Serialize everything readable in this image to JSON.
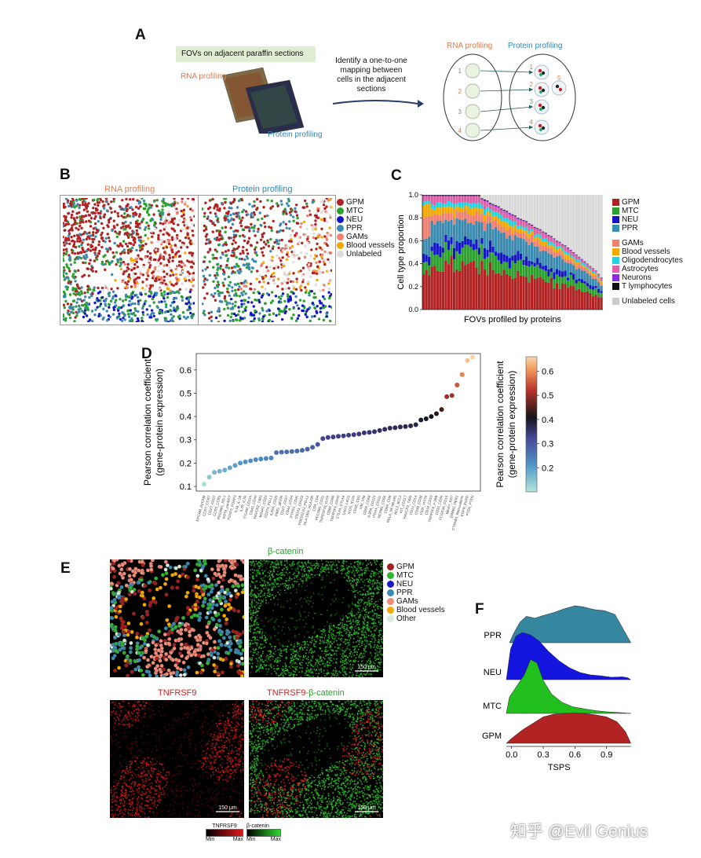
{
  "panels": {
    "a": "A",
    "b": "B",
    "c": "C",
    "d": "D",
    "e": "E",
    "f": "F"
  },
  "panel_a": {
    "fov_label": "FOVs on adjacent paraffin sections",
    "rna_label": "RNA profiling",
    "protein_label": "Protein profiling",
    "mapping_text": [
      "Identify a one-to-one",
      "mapping between",
      "cells in the adjacent",
      "sections"
    ],
    "oval_rna_title": "RNA profiling",
    "oval_protein_title": "Protein profiling",
    "left_numbers": [
      "1",
      "2",
      "3",
      "4"
    ],
    "right_numbers": [
      "1",
      "2",
      "3",
      "4",
      "5"
    ],
    "colors": {
      "rna": "#e07b4f",
      "protein": "#2f86b5"
    }
  },
  "panel_b": {
    "rna_title": "RNA profiling",
    "protein_title": "Protein profiling",
    "legend": [
      {
        "label": "GPM",
        "color": "#b22222"
      },
      {
        "label": "MTC",
        "color": "#2ca02c"
      },
      {
        "label": "NEU",
        "color": "#1515c8"
      },
      {
        "label": "PPR",
        "color": "#3b8bb0"
      },
      {
        "label": "GAMs",
        "color": "#f08070"
      },
      {
        "label": "Blood vessels",
        "color": "#f5a800"
      },
      {
        "label": "Unlabeled",
        "color": "#dddddd"
      }
    ]
  },
  "chart_data": [
    {
      "type": "bar",
      "id": "C",
      "title": "",
      "xlabel": "FOVs profiled by proteins",
      "ylabel": "Cell type proportion",
      "ylim": [
        0,
        1
      ],
      "yticks": [
        "0.0",
        "0.2",
        "0.4",
        "0.6",
        "0.8",
        "1.0"
      ],
      "labeled_fraction": [
        1,
        1,
        1,
        1,
        1,
        1,
        1,
        1,
        1,
        1,
        1,
        1,
        1,
        1,
        1,
        1,
        1,
        1,
        1,
        1,
        1,
        0.97,
        0.96,
        0.95,
        0.93,
        0.92,
        0.91,
        0.9,
        0.88,
        0.87,
        0.86,
        0.84,
        0.83,
        0.82,
        0.8,
        0.79,
        0.78,
        0.77,
        0.75,
        0.74,
        0.72,
        0.71,
        0.7,
        0.68,
        0.67,
        0.65,
        0.64,
        0.62,
        0.6,
        0.59,
        0.57,
        0.56,
        0.54,
        0.52,
        0.5,
        0.48,
        0.46,
        0.44,
        0.42,
        0.4,
        0.38,
        0.36,
        0.34,
        0.31,
        0.28
      ],
      "legend_groups": [
        [
          {
            "label": "GPM",
            "color": "#b22222"
          },
          {
            "label": "MTC",
            "color": "#2ca02c"
          },
          {
            "label": "NEU",
            "color": "#1515c8"
          },
          {
            "label": "PPR",
            "color": "#3b8bb0"
          }
        ],
        [
          {
            "label": "GAMs",
            "color": "#f08070"
          },
          {
            "label": "Blood vessels",
            "color": "#f5a800"
          },
          {
            "label": "Oligodendrocytes",
            "color": "#22d3e0"
          },
          {
            "label": "Astrocytes",
            "color": "#e060a8"
          },
          {
            "label": "Neurons",
            "color": "#8a2be2"
          },
          {
            "label": "T lymphocytes",
            "color": "#111111"
          }
        ],
        [
          {
            "label": "Unlabeled cells",
            "color": "#cccccc"
          }
        ]
      ]
    },
    {
      "type": "scatter",
      "id": "D",
      "ylabel": [
        "Pearson correlation coefficient",
        "(gene-protein expression)"
      ],
      "colorbar_label": [
        "Pearson correlation coefficient",
        "(gene-protein expression)"
      ],
      "ylim": [
        0.08,
        0.67
      ],
      "yticks": [
        "0.1",
        "0.2",
        "0.3",
        "0.4",
        "0.5",
        "0.6"
      ],
      "colorbar_ticks": [
        "0.2",
        "0.3",
        "0.4",
        "0.5",
        "0.6"
      ],
      "x": [
        "EPCAM_EpCAM",
        "CCR7_CCR7",
        "CD27_CD27",
        "CCR5_CCR5",
        "PECAM1_PD-1",
        "KRT8_panKRT",
        "FOXP3_FOXP3",
        "IL1B_IL-1B",
        "IL7R_IL7R",
        "ITGAM_CD11b",
        "CD40_CD40",
        "HAVCR2_TIM3",
        "MS4A1_CD20",
        "CD274_PD-L1",
        "IL2RA_CD25",
        "PMEL_gp100",
        "CD27_CD27",
        "CD44_CD44",
        "PTPRC_CD45",
        "CD163_CD163",
        "PDCD1LG2_PD-L2",
        "HLA-DRA_HLA-DR",
        "CD4_CD4",
        "PECAM1_CD31",
        "TNFRSF18_GITR",
        "CD86_CD86",
        "TNFRSF4_OX40",
        "CTLA4_CTLA4",
        "LAG3_LAG3",
        "ICOS_ICOS",
        "CD3E_CD3",
        "VIM_VIM",
        "CD68_CD68",
        "IL3RA_CD123",
        "ITGAX_CD11c",
        "NCAM1_CD56",
        "CD8A_CD8",
        "RELA_NF-kB p65",
        "BCL2_BCL2",
        "KIT_CD117",
        "HAVCR2_TIM3",
        "CD14_CD14",
        "CD38_CD38",
        "VSIR_VISTA",
        "CD19_CD19",
        "TNFRSF9_4-1BB",
        "CD34_CD34",
        "FCGR3A_CD16",
        "MKI67_Ki67",
        "ERBB2_HER2",
        "CTNNB1_Beta-catenin",
        "EGFR_EGFR",
        "PTEN_PTEN"
      ],
      "y": [
        0.11,
        0.14,
        0.16,
        0.165,
        0.17,
        0.18,
        0.19,
        0.2,
        0.205,
        0.21,
        0.215,
        0.218,
        0.22,
        0.222,
        0.245,
        0.247,
        0.248,
        0.25,
        0.252,
        0.255,
        0.26,
        0.268,
        0.28,
        0.305,
        0.31,
        0.312,
        0.315,
        0.317,
        0.32,
        0.322,
        0.325,
        0.33,
        0.332,
        0.335,
        0.34,
        0.345,
        0.35,
        0.352,
        0.355,
        0.357,
        0.36,
        0.365,
        0.385,
        0.39,
        0.4,
        0.412,
        0.43,
        0.485,
        0.49,
        0.535,
        0.58,
        0.64,
        0.655
      ]
    },
    {
      "type": "area",
      "id": "F",
      "xlabel": "TSPS",
      "xticks": [
        "0.0",
        "0.3",
        "0.6",
        "0.9"
      ],
      "xlim": [
        -0.05,
        1.2
      ],
      "series": [
        {
          "name": "PPR",
          "color": "#35869f"
        },
        {
          "name": "NEU",
          "color": "#1515e0"
        },
        {
          "name": "MTC",
          "color": "#22c01f"
        },
        {
          "name": "GPM",
          "color": "#b22424"
        }
      ]
    }
  ],
  "panel_e": {
    "beta_title": "β-catenin",
    "tnf_title": "TNFRSF9",
    "merge_title_red": "TNFRSF9",
    "merge_title_green": "-β-catenin",
    "scale": "150 μm",
    "legend": [
      {
        "label": "GPM",
        "color": "#a31f1f"
      },
      {
        "label": "MTC",
        "color": "#2fb52f"
      },
      {
        "label": "NEU",
        "color": "#1a1ac8"
      },
      {
        "label": "PPR",
        "color": "#3b8bb0"
      },
      {
        "label": "GAMs",
        "color": "#f08c78"
      },
      {
        "label": "Blood vessels",
        "color": "#f5a800"
      },
      {
        "label": "Other",
        "color": "#d9e8d9"
      }
    ],
    "cbar_tnf": {
      "title": "TNFRSF9",
      "min": "Min",
      "max": "Max"
    },
    "cbar_beta": {
      "title": "β-catenin",
      "min": "Min",
      "max": "Max"
    }
  },
  "watermark": "知乎 @Evil Genius"
}
